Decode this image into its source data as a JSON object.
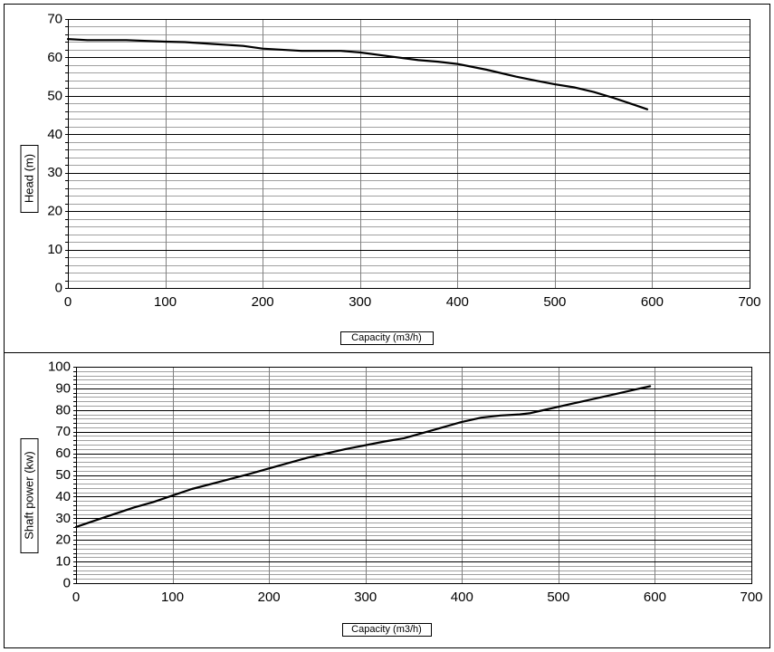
{
  "chart_data": [
    {
      "type": "line",
      "xlabel": "Capacity (m3/h)",
      "ylabel": "Head (m)",
      "xlim": [
        0,
        700
      ],
      "ylim": [
        0,
        70
      ],
      "x_ticks": [
        0,
        100,
        200,
        300,
        400,
        500,
        600,
        700
      ],
      "y_ticks": [
        0,
        10,
        20,
        30,
        40,
        50,
        60,
        70
      ],
      "minor_y_step": 2,
      "grid": true,
      "legend": "none",
      "line_color": "#000000",
      "major_grid_color": "#000000",
      "minor_grid_color": "#a0a0a0",
      "series": [
        {
          "x": [
            0,
            20,
            60,
            100,
            120,
            150,
            180,
            200,
            240,
            280,
            300,
            330,
            360,
            380,
            400,
            430,
            460,
            480,
            500,
            520,
            540,
            560,
            580,
            595
          ],
          "values": [
            64.8,
            64.5,
            64.5,
            64.1,
            64.0,
            63.5,
            63.0,
            62.3,
            61.7,
            61.7,
            61.3,
            60.3,
            59.3,
            58.9,
            58.3,
            56.8,
            55.0,
            54.0,
            53.0,
            52.2,
            51.0,
            49.5,
            47.8,
            46.5
          ]
        }
      ]
    },
    {
      "type": "line",
      "xlabel": "Capacity (m3/h)",
      "ylabel": "Shaft power (kw)",
      "xlim": [
        0,
        700
      ],
      "ylim": [
        0,
        100
      ],
      "x_ticks": [
        0,
        100,
        200,
        300,
        400,
        500,
        600,
        700
      ],
      "y_ticks": [
        0,
        10,
        20,
        30,
        40,
        50,
        60,
        70,
        80,
        90,
        100
      ],
      "minor_y_step": 2,
      "grid": true,
      "legend": "none",
      "line_color": "#000000",
      "major_grid_color": "#000000",
      "minor_grid_color": "#a0a0a0",
      "series": [
        {
          "x": [
            0,
            30,
            60,
            80,
            100,
            120,
            150,
            180,
            200,
            240,
            280,
            320,
            340,
            360,
            380,
            400,
            420,
            440,
            460,
            470,
            480,
            500,
            520,
            540,
            560,
            580,
            595
          ],
          "values": [
            26,
            30.5,
            35,
            37.5,
            40.5,
            43.5,
            47,
            50.5,
            53,
            58,
            62,
            65.5,
            67,
            69.5,
            72,
            74.5,
            76.5,
            77.5,
            78,
            78.5,
            79.5,
            81.5,
            83.5,
            85.5,
            87.5,
            89.5,
            91
          ]
        }
      ]
    }
  ]
}
